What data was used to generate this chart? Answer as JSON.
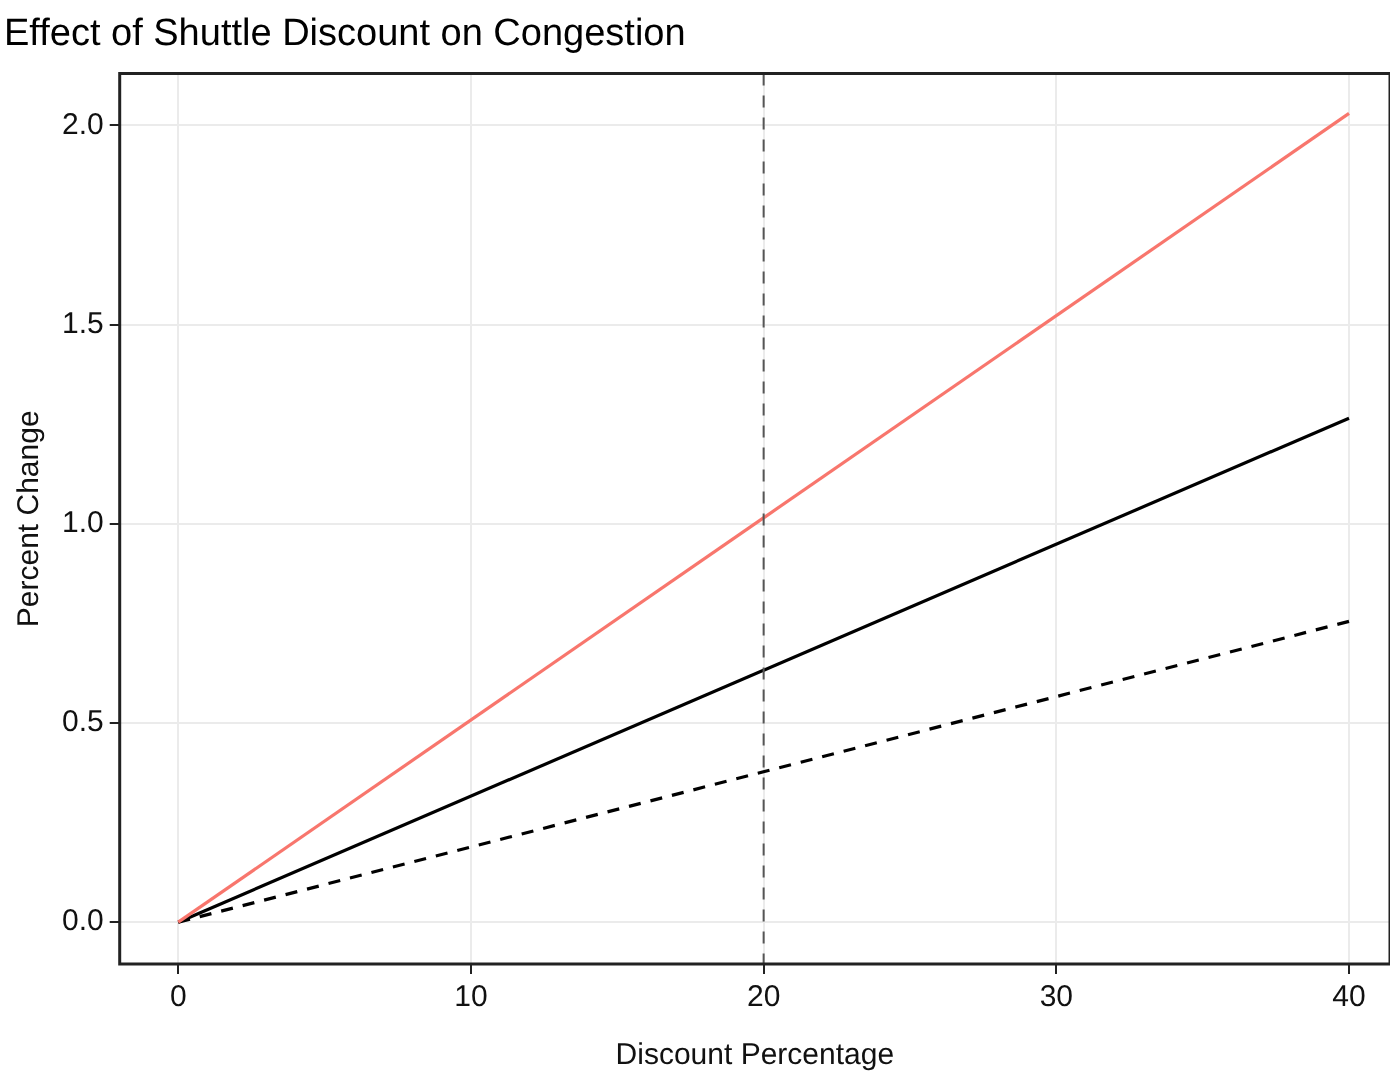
{
  "chart_data": {
    "type": "line",
    "title": "Effect of Shuttle Discount on Congestion",
    "xlabel": "Discount Percentage",
    "ylabel": "Percent Change",
    "x": [
      0,
      40
    ],
    "series": [
      {
        "color": "#f8766d",
        "values": [
          0,
          2.03
        ]
      },
      {
        "color": "#000000",
        "values": [
          0,
          1.265
        ]
      },
      {
        "color": "#000000",
        "values": [
          0,
          0.755
        ],
        "line_style": "dashed"
      }
    ],
    "xlim": [
      -2,
      41.4
    ],
    "xticks": [
      0,
      10,
      20,
      30,
      40
    ],
    "ylim": [
      -0.105,
      2.13
    ],
    "yticks": [
      {
        "value": 0,
        "label": "0.0"
      },
      {
        "value": 0.5,
        "label": "0.5"
      },
      {
        "value": 1,
        "label": "1.0"
      },
      {
        "value": 1.5,
        "label": "1.5"
      },
      {
        "value": 2,
        "label": "2.0"
      }
    ],
    "ref_lines": [
      {
        "axis": "x",
        "value": 20,
        "color": "#555555",
        "line_style": "dashed"
      }
    ],
    "grid": true,
    "legend": false,
    "marker": "none",
    "line_style": "solid"
  }
}
